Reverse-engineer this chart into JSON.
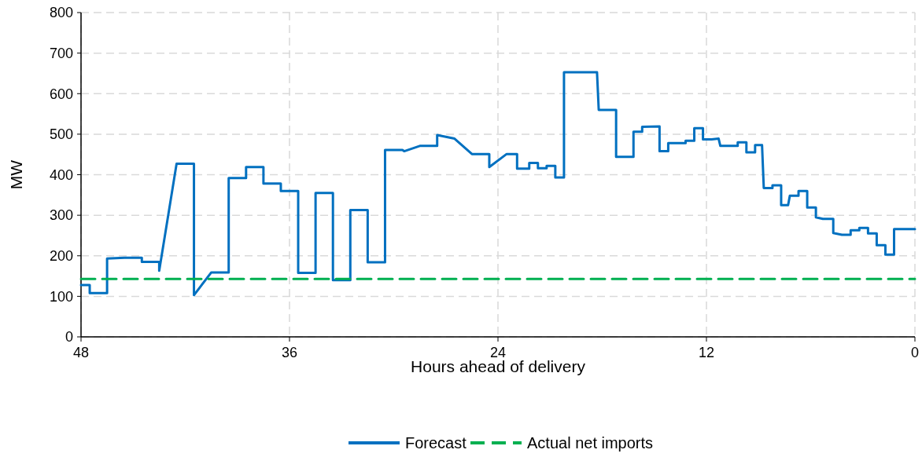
{
  "chart_data": {
    "type": "line",
    "xlabel": "Hours ahead of delivery",
    "ylabel": "MW",
    "xlim": [
      48,
      0
    ],
    "xticks": [
      48,
      36,
      24,
      12,
      0
    ],
    "ylim": [
      0,
      800
    ],
    "yticks": [
      0,
      100,
      200,
      300,
      400,
      500,
      600,
      700,
      800
    ],
    "grid": true,
    "legend": "bottom",
    "marker": "none",
    "series": [
      {
        "name": "Forecast",
        "color": "#0070c0",
        "line_style": "solid",
        "x": [
          48,
          47.5,
          47.5,
          46.5,
          46.5,
          45.5,
          44.5,
          44.5,
          43.5,
          43.5,
          42.5,
          41.5,
          41.5,
          40.5,
          39.5,
          39.5,
          38.5,
          38.5,
          37.5,
          37.5,
          36.5,
          36.5,
          35.5,
          35.5,
          34.5,
          34.5,
          33.5,
          33.5,
          32.5,
          32.5,
          31.5,
          31.5,
          30.5,
          30.5,
          29.5,
          29.4,
          28.5,
          27.5,
          27.5,
          26.5,
          25.5,
          24.5,
          24.5,
          23.5,
          22.9,
          22.9,
          22.2,
          22.2,
          21.7,
          21.7,
          21.2,
          21.2,
          20.7,
          20.7,
          20.2,
          20.2,
          18.3,
          18.2,
          17.2,
          17.2,
          16.2,
          16.2,
          15.7,
          15.7,
          14.7,
          14.7,
          14.2,
          14.2,
          13.2,
          13.2,
          12.7,
          12.7,
          12.2,
          12.2,
          11.7,
          11.3,
          11.2,
          10.2,
          10.2,
          9.7,
          9.7,
          9.2,
          9.2,
          8.8,
          8.7,
          8.2,
          8.2,
          7.7,
          7.7,
          7.3,
          7.2,
          6.7,
          6.7,
          6.2,
          6.2,
          5.7,
          5.7,
          5.3,
          4.7,
          4.7,
          4.2,
          3.7,
          3.7,
          3.2,
          3.2,
          2.7,
          2.7,
          2.2,
          2.2,
          1.7,
          1.7,
          1.2,
          1.2,
          0
        ],
        "values": [
          128,
          128,
          108,
          108,
          193,
          195,
          195,
          185,
          185,
          163,
          427,
          427,
          103,
          159,
          159,
          392,
          392,
          419,
          419,
          378,
          378,
          360,
          360,
          158,
          158,
          355,
          355,
          140,
          140,
          313,
          313,
          184,
          184,
          461,
          461,
          458,
          471,
          471,
          498,
          489,
          451,
          451,
          419,
          451,
          451,
          415,
          415,
          429,
          429,
          416,
          416,
          422,
          422,
          393,
          393,
          653,
          653,
          560,
          560,
          444,
          444,
          506,
          506,
          518,
          519,
          458,
          458,
          478,
          478,
          484,
          484,
          515,
          515,
          487,
          487,
          489,
          471,
          471,
          480,
          480,
          455,
          455,
          473,
          473,
          367,
          367,
          374,
          374,
          325,
          325,
          348,
          348,
          360,
          360,
          319,
          319,
          295,
          291,
          291,
          256,
          252,
          252,
          263,
          263,
          269,
          269,
          255,
          255,
          226,
          226,
          203,
          203,
          266,
          266
        ]
      },
      {
        "name": "Actual net imports",
        "color": "#00b050",
        "line_style": "dashed",
        "x": [
          48,
          0
        ],
        "values": [
          143,
          143
        ]
      }
    ]
  }
}
